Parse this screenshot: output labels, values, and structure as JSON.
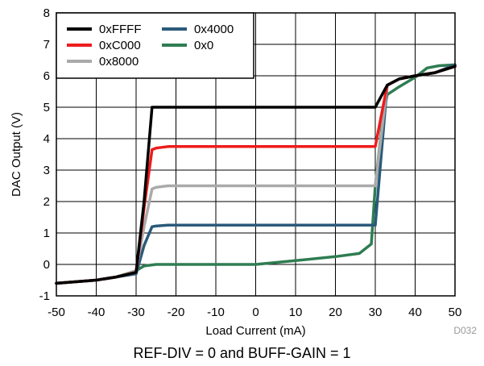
{
  "chart_data": {
    "type": "line",
    "title": "",
    "xlabel": "Load Current (mA)",
    "ylabel": "DAC Output (V)",
    "xlim": [
      -50,
      50
    ],
    "ylim": [
      -1,
      8
    ],
    "xticks": [
      -50,
      -40,
      -30,
      -20,
      -10,
      0,
      10,
      20,
      30,
      40,
      50
    ],
    "yticks": [
      -1,
      0,
      1,
      2,
      3,
      4,
      5,
      6,
      7,
      8
    ],
    "grid": true,
    "legend_position": "top-left",
    "series": [
      {
        "name": "0xFFFF",
        "color": "#000000",
        "x": [
          -50,
          -40,
          -35,
          -30,
          -28,
          -26,
          -25,
          0,
          29,
          30,
          33,
          36,
          40,
          45,
          50
        ],
        "y": [
          -0.6,
          -0.5,
          -0.4,
          -0.25,
          2.0,
          5.0,
          5.0,
          5.0,
          5.0,
          5.0,
          5.7,
          5.9,
          6.0,
          6.1,
          6.3
        ]
      },
      {
        "name": "0xC000",
        "color": "#ee1c1c",
        "x": [
          -50,
          -40,
          -35,
          -30,
          -28,
          -26,
          -25,
          -22,
          0,
          29,
          30,
          33,
          36,
          40,
          45,
          50
        ],
        "y": [
          -0.6,
          -0.5,
          -0.4,
          -0.25,
          1.8,
          3.65,
          3.7,
          3.75,
          3.75,
          3.75,
          3.75,
          5.7,
          5.9,
          6.0,
          6.1,
          6.3
        ]
      },
      {
        "name": "0x8000",
        "color": "#aaaaaa",
        "x": [
          -50,
          -40,
          -35,
          -30,
          -28,
          -26,
          -25,
          -22,
          0,
          29,
          30,
          33,
          36,
          40,
          45,
          50
        ],
        "y": [
          -0.6,
          -0.5,
          -0.4,
          -0.2,
          1.2,
          2.4,
          2.45,
          2.5,
          2.5,
          2.5,
          2.5,
          5.7,
          5.9,
          6.0,
          6.1,
          6.3
        ]
      },
      {
        "name": "0x4000",
        "color": "#2a5a7a",
        "x": [
          -50,
          -40,
          -35,
          -30,
          -28,
          -26,
          -25,
          -22,
          0,
          29,
          30,
          33,
          36,
          40,
          45,
          50
        ],
        "y": [
          -0.6,
          -0.5,
          -0.4,
          -0.3,
          0.6,
          1.2,
          1.22,
          1.25,
          1.25,
          1.25,
          1.25,
          5.7,
          5.9,
          6.0,
          6.1,
          6.35
        ]
      },
      {
        "name": "0x0",
        "color": "#2e7d52",
        "x": [
          -50,
          -40,
          -35,
          -30,
          -28,
          -25,
          -20,
          -10,
          0,
          10,
          20,
          26,
          29,
          30,
          32,
          33,
          36,
          40,
          43,
          46,
          50
        ],
        "y": [
          -0.6,
          -0.5,
          -0.4,
          -0.2,
          -0.05,
          0.0,
          0.0,
          0.0,
          0.0,
          0.12,
          0.25,
          0.35,
          0.65,
          2.5,
          4.8,
          5.4,
          5.65,
          5.95,
          6.25,
          6.32,
          6.35
        ]
      }
    ]
  },
  "doc_id": "D032",
  "caption": "REF-DIV = 0 and BUFF-GAIN = 1"
}
